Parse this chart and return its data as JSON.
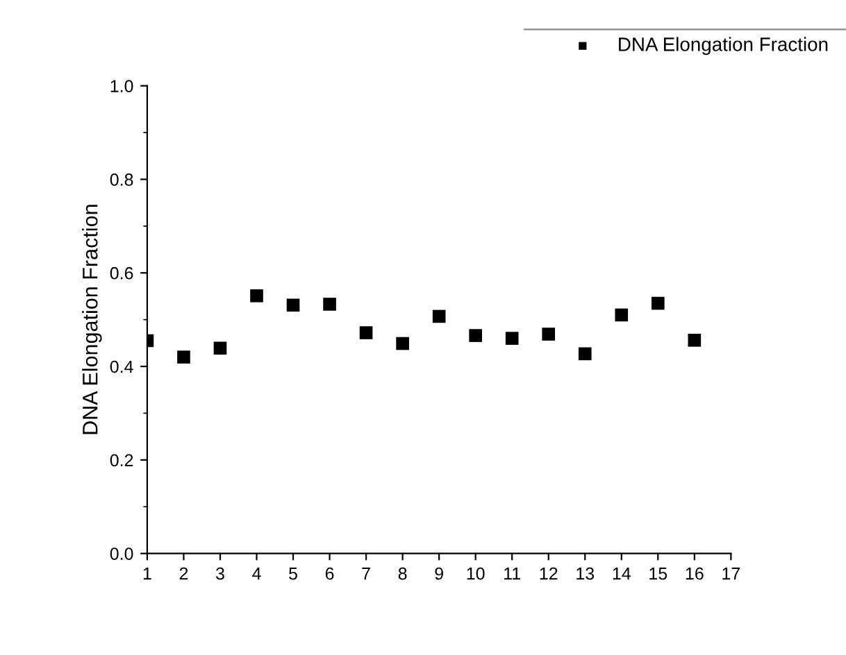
{
  "chart_data": {
    "type": "scatter",
    "ylabel": "DNA Elongation Fraction",
    "x": [
      1,
      2,
      3,
      4,
      5,
      6,
      7,
      8,
      9,
      10,
      11,
      12,
      13,
      14,
      15,
      16
    ],
    "series": [
      {
        "name": "DNA Elongation Fraction",
        "color": "#000000",
        "values": [
          0.455,
          0.42,
          0.439,
          0.551,
          0.531,
          0.533,
          0.472,
          0.449,
          0.507,
          0.466,
          0.46,
          0.469,
          0.427,
          0.51,
          0.535,
          0.456
        ]
      }
    ],
    "xlim": [
      1,
      17
    ],
    "xticks": [
      1,
      2,
      3,
      4,
      5,
      6,
      7,
      8,
      9,
      10,
      11,
      12,
      13,
      14,
      15,
      16,
      17
    ],
    "ylim": [
      0,
      1.0
    ],
    "yticks": [
      {
        "value": 0,
        "label": "0.0"
      },
      {
        "value": 0.2,
        "label": "0.2"
      },
      {
        "value": 0.4,
        "label": "0.4"
      },
      {
        "value": 0.6,
        "label": "0.6"
      },
      {
        "value": 0.8,
        "label": "0.8"
      },
      {
        "value": 1.0,
        "label": "1.0"
      }
    ],
    "marker": "square",
    "grid": false,
    "legend": "top right"
  }
}
